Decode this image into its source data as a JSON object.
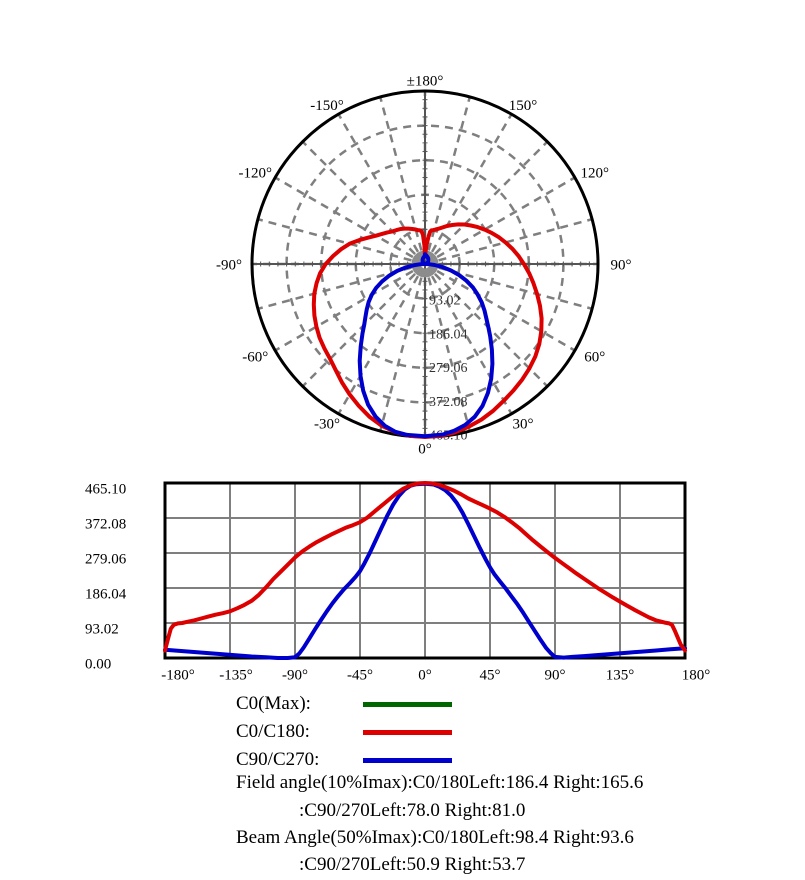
{
  "page": {
    "background": "#ffffff"
  },
  "legend": {
    "items": [
      {
        "label": "C0(Max):",
        "color": "#006600"
      },
      {
        "label": "C0/C180:",
        "color": "#dd0000"
      },
      {
        "label": "C90/C270:",
        "color": "#0000cc"
      }
    ]
  },
  "annotations": {
    "line1": "Field angle(10%Imax):C0/180Left:186.4 Right:165.6",
    "line2": ":C90/270Left:78.0 Right:81.0",
    "line3": "Beam Angle(50%Imax):C0/180Left:98.4 Right:93.6",
    "line4": ":C90/270Left:50.9 Right:53.7"
  },
  "chart_data": {
    "type": "polar+line",
    "title": "",
    "ymax": 465.1,
    "grid_color": "#7f7f7f",
    "axis_color": "#555555",
    "polar": {
      "orientation": "0 deg at bottom, positive angles to the right, 180 at top",
      "angle_grid_step_deg": 15,
      "angle_labels": [
        {
          "deg": 0,
          "label": "0°"
        },
        {
          "deg": 30,
          "label": "30°"
        },
        {
          "deg": 60,
          "label": "60°"
        },
        {
          "deg": 90,
          "label": "90°"
        },
        {
          "deg": 120,
          "label": "120°"
        },
        {
          "deg": 150,
          "label": "150°"
        },
        {
          "deg": 180,
          "label": "±180°"
        },
        {
          "deg": -150,
          "label": "-150°"
        },
        {
          "deg": -120,
          "label": "-120°"
        },
        {
          "deg": -90,
          "label": "-90°"
        },
        {
          "deg": -60,
          "label": "-60°"
        },
        {
          "deg": -30,
          "label": "-30°"
        }
      ],
      "radial_ticks": [
        {
          "value": 93.02,
          "label": "93.02"
        },
        {
          "value": 186.04,
          "label": "186.04"
        },
        {
          "value": 279.06,
          "label": "279.06"
        },
        {
          "value": 372.08,
          "label": "372.08"
        },
        {
          "value": 465.1,
          "label": "465.10"
        }
      ]
    },
    "cartesian": {
      "xlim": [
        -180,
        180
      ],
      "ylim": [
        0,
        465.1
      ],
      "grid": true,
      "x_ticks": [
        {
          "value": -180,
          "label": "-180°"
        },
        {
          "value": -135,
          "label": "-135°"
        },
        {
          "value": -90,
          "label": "-90°"
        },
        {
          "value": -45,
          "label": "-45°"
        },
        {
          "value": 0,
          "label": "0°"
        },
        {
          "value": 45,
          "label": "45°"
        },
        {
          "value": 90,
          "label": "90°"
        },
        {
          "value": 135,
          "label": "135°"
        },
        {
          "value": 180,
          "label": "180°"
        }
      ],
      "y_ticks": [
        {
          "value": 0,
          "label": "0.00"
        },
        {
          "value": 93.02,
          "label": "93.02"
        },
        {
          "value": 186.04,
          "label": "186.04"
        },
        {
          "value": 279.06,
          "label": "279.06"
        },
        {
          "value": 372.08,
          "label": "372.08"
        },
        {
          "value": 465.1,
          "label": "465.10"
        }
      ]
    },
    "series": [
      {
        "name": "C0(Max)",
        "color": "#006600",
        "points": []
      },
      {
        "name": "C0/C180",
        "color": "#dd0000",
        "points": [
          [
            -180,
            20
          ],
          [
            -178,
            50
          ],
          [
            -176,
            78
          ],
          [
            -174,
            88
          ],
          [
            -171,
            92
          ],
          [
            -168,
            93
          ],
          [
            -165,
            96
          ],
          [
            -160,
            100
          ],
          [
            -155,
            105
          ],
          [
            -150,
            110
          ],
          [
            -145,
            115
          ],
          [
            -140,
            119
          ],
          [
            -135,
            124
          ],
          [
            -130,
            132
          ],
          [
            -125,
            141
          ],
          [
            -120,
            152
          ],
          [
            -115,
            168
          ],
          [
            -110,
            188
          ],
          [
            -105,
            210
          ],
          [
            -100,
            229
          ],
          [
            -95,
            248
          ],
          [
            -90,
            267
          ],
          [
            -85,
            283
          ],
          [
            -80,
            296
          ],
          [
            -75,
            308
          ],
          [
            -70,
            318
          ],
          [
            -65,
            328
          ],
          [
            -60,
            337
          ],
          [
            -55,
            346
          ],
          [
            -50,
            353
          ],
          [
            -45,
            361
          ],
          [
            -40,
            373
          ],
          [
            -35,
            389
          ],
          [
            -30,
            405
          ],
          [
            -25,
            421
          ],
          [
            -20,
            437
          ],
          [
            -15,
            450
          ],
          [
            -10,
            459
          ],
          [
            -5,
            464
          ],
          [
            0,
            465.1
          ],
          [
            5,
            464
          ],
          [
            10,
            460
          ],
          [
            15,
            453
          ],
          [
            20,
            445
          ],
          [
            25,
            435
          ],
          [
            30,
            424
          ],
          [
            35,
            415
          ],
          [
            40,
            406
          ],
          [
            45,
            397
          ],
          [
            50,
            387
          ],
          [
            55,
            375
          ],
          [
            60,
            361
          ],
          [
            65,
            346
          ],
          [
            70,
            329
          ],
          [
            75,
            312
          ],
          [
            80,
            296
          ],
          [
            85,
            281
          ],
          [
            90,
            266
          ],
          [
            95,
            252
          ],
          [
            100,
            238
          ],
          [
            105,
            224
          ],
          [
            110,
            211
          ],
          [
            115,
            198
          ],
          [
            120,
            185
          ],
          [
            125,
            173
          ],
          [
            130,
            161
          ],
          [
            135,
            150
          ],
          [
            140,
            139
          ],
          [
            145,
            128
          ],
          [
            150,
            118
          ],
          [
            155,
            108
          ],
          [
            160,
            100
          ],
          [
            163,
            97
          ],
          [
            166,
            94
          ],
          [
            169,
            92
          ],
          [
            171,
            88
          ],
          [
            173,
            72
          ],
          [
            175,
            54
          ],
          [
            177,
            36
          ],
          [
            180,
            20
          ]
        ]
      },
      {
        "name": "C90/C270",
        "color": "#0000cc",
        "points": [
          [
            -180,
            22
          ],
          [
            -170,
            19
          ],
          [
            -160,
            16
          ],
          [
            -150,
            13
          ],
          [
            -140,
            10
          ],
          [
            -130,
            7
          ],
          [
            -120,
            4
          ],
          [
            -110,
            2
          ],
          [
            -102,
            0
          ],
          [
            -95,
            0
          ],
          [
            -90,
            2
          ],
          [
            -87,
            12
          ],
          [
            -84,
            28
          ],
          [
            -80,
            52
          ],
          [
            -76,
            77
          ],
          [
            -72,
            101
          ],
          [
            -68,
            124
          ],
          [
            -64,
            146
          ],
          [
            -60,
            165
          ],
          [
            -56,
            183
          ],
          [
            -52,
            199
          ],
          [
            -48,
            216
          ],
          [
            -45,
            231
          ],
          [
            -42,
            251
          ],
          [
            -38,
            281
          ],
          [
            -34,
            314
          ],
          [
            -30,
            347
          ],
          [
            -26,
            379
          ],
          [
            -22,
            408
          ],
          [
            -18,
            431
          ],
          [
            -14,
            448
          ],
          [
            -10,
            458
          ],
          [
            -6,
            462
          ],
          [
            0,
            463
          ],
          [
            6,
            461
          ],
          [
            10,
            455
          ],
          [
            14,
            446
          ],
          [
            18,
            432
          ],
          [
            22,
            412
          ],
          [
            26,
            386
          ],
          [
            30,
            356
          ],
          [
            34,
            324
          ],
          [
            38,
            292
          ],
          [
            42,
            262
          ],
          [
            45,
            241
          ],
          [
            48,
            223
          ],
          [
            52,
            203
          ],
          [
            56,
            184
          ],
          [
            60,
            163
          ],
          [
            64,
            143
          ],
          [
            68,
            120
          ],
          [
            72,
            96
          ],
          [
            76,
            72
          ],
          [
            80,
            48
          ],
          [
            84,
            26
          ],
          [
            87,
            13
          ],
          [
            90,
            3
          ],
          [
            96,
            1
          ],
          [
            102,
            3
          ],
          [
            110,
            5
          ],
          [
            120,
            8
          ],
          [
            130,
            11
          ],
          [
            140,
            14
          ],
          [
            150,
            17
          ],
          [
            160,
            20
          ],
          [
            170,
            23
          ],
          [
            180,
            26
          ]
        ]
      }
    ]
  }
}
